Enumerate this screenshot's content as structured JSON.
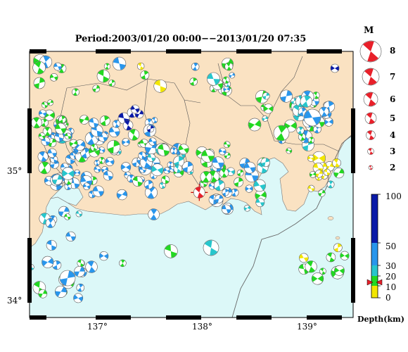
{
  "title": "Period:2003/01/20 00:00−−2013/01/20 07:35",
  "magnitude_legend": {
    "header": "M",
    "labels": [
      "8",
      "7",
      "6",
      "5",
      "4",
      "3",
      "2"
    ]
  },
  "axes": {
    "x_ticks": [
      "137°",
      "138°",
      "139°"
    ],
    "y_ticks": [
      "35°",
      "34°"
    ],
    "xlim": [
      136.35,
      139.4
    ],
    "ylim": [
      33.9,
      35.9
    ]
  },
  "depth_scale": {
    "title": "Depth(km)",
    "labels": [
      "100",
      "50",
      "30",
      "20",
      "10",
      "0"
    ],
    "colors": {
      "shallow": "#f2e600",
      "mid": "#22d822",
      "deep": "#2996ec",
      "cyan": "#27c6cc",
      "very_deep": "#0a1aa8"
    }
  },
  "colors": {
    "land": "#fae2c2",
    "sea": "#dcf8f8",
    "event_main": "#e8202a"
  },
  "main_event": {
    "lon": 137.95,
    "lat": 34.84
  }
}
